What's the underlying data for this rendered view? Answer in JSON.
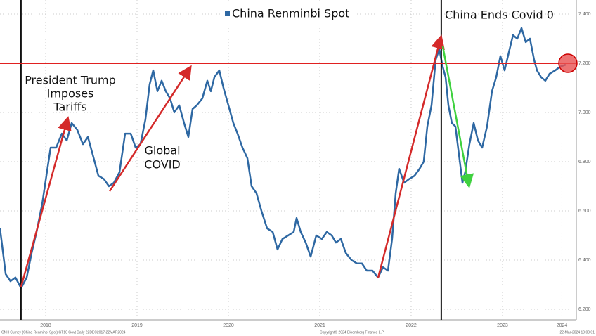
{
  "chart_data": {
    "type": "line",
    "series": [
      {
        "name": "China Renminbi Spot",
        "color": "#2e68a3",
        "x": [
          2018.0,
          2018.062,
          2018.115,
          2018.169,
          2018.231,
          2018.292,
          2018.346,
          2018.4,
          2018.462,
          2018.508,
          2018.554,
          2018.615,
          2018.677,
          2018.731,
          2018.785,
          2018.846,
          2018.908,
          2018.962,
          2019.015,
          2019.077,
          2019.138,
          2019.192,
          2019.246,
          2019.308,
          2019.369,
          2019.431,
          2019.485,
          2019.538,
          2019.592,
          2019.638,
          2019.677,
          2019.723,
          2019.769,
          2019.815,
          2019.862,
          2019.908,
          2019.962,
          2020.015,
          2020.062,
          2020.108,
          2020.154,
          2020.215,
          2020.269,
          2020.308,
          2020.346,
          2020.4,
          2020.446,
          2020.5,
          2020.554,
          2020.6,
          2020.654,
          2020.708,
          2020.754,
          2020.808,
          2020.862,
          2020.923,
          2020.985,
          2021.038,
          2021.092,
          2021.154,
          2021.215,
          2021.246,
          2021.292,
          2021.346,
          2021.4,
          2021.462,
          2021.523,
          2021.577,
          2021.631,
          2021.677,
          2021.731,
          2021.785,
          2021.846,
          2021.908,
          2021.962,
          2022.015,
          2022.077,
          2022.138,
          2022.192,
          2022.246,
          2022.292,
          2022.331,
          2022.369,
          2022.423,
          2022.477,
          2022.538,
          2022.592,
          2022.638,
          2022.677,
          2022.723,
          2022.769,
          2022.808,
          2022.846,
          2022.877,
          2022.908,
          2022.946,
          2022.985,
          2023.023,
          2023.062,
          2023.092,
          2023.138,
          2023.185,
          2023.231,
          2023.277,
          2023.331,
          2023.385,
          2023.431,
          2023.477,
          2023.523,
          2023.569,
          2023.615,
          2023.662,
          2023.708,
          2023.754,
          2023.8,
          2023.846,
          2023.877,
          2023.923,
          2023.969,
          2024.015,
          2024.077,
          2024.131,
          2024.192
        ],
        "values": [
          6.529,
          6.343,
          6.314,
          6.329,
          6.286,
          6.329,
          6.429,
          6.514,
          6.629,
          6.743,
          6.857,
          6.857,
          6.914,
          6.886,
          6.957,
          6.929,
          6.871,
          6.9,
          6.829,
          6.743,
          6.729,
          6.7,
          6.714,
          6.757,
          6.914,
          6.914,
          6.857,
          6.871,
          6.971,
          7.114,
          7.171,
          7.086,
          7.129,
          7.086,
          7.057,
          7.0,
          7.029,
          6.957,
          6.9,
          7.014,
          7.029,
          7.057,
          7.129,
          7.086,
          7.143,
          7.171,
          7.1,
          7.029,
          6.957,
          6.914,
          6.857,
          6.814,
          6.7,
          6.671,
          6.6,
          6.529,
          6.514,
          6.443,
          6.486,
          6.5,
          6.514,
          6.571,
          6.514,
          6.471,
          6.414,
          6.5,
          6.486,
          6.514,
          6.5,
          6.471,
          6.486,
          6.429,
          6.4,
          6.386,
          6.386,
          6.357,
          6.357,
          6.329,
          6.371,
          6.357,
          6.486,
          6.671,
          6.771,
          6.714,
          6.729,
          6.743,
          6.771,
          6.8,
          6.943,
          7.029,
          7.214,
          7.257,
          7.186,
          7.143,
          7.029,
          6.957,
          6.943,
          6.829,
          6.714,
          6.757,
          6.871,
          6.957,
          6.886,
          6.857,
          6.943,
          7.086,
          7.143,
          7.229,
          7.171,
          7.243,
          7.314,
          7.3,
          7.343,
          7.286,
          7.3,
          7.214,
          7.171,
          7.143,
          7.129,
          7.157,
          7.171,
          7.186,
          7.194
        ]
      }
    ],
    "xlim": [
      2018.0,
      2024.308
    ],
    "ylim": [
      6.157,
      7.457
    ],
    "xticks": [
      {
        "value": 2018.5,
        "label": "2018"
      },
      {
        "value": 2019.5,
        "label": "2019"
      },
      {
        "value": 2020.5,
        "label": "2020"
      },
      {
        "value": 2021.5,
        "label": "2021"
      },
      {
        "value": 2022.5,
        "label": "2022"
      },
      {
        "value": 2023.5,
        "label": "2023"
      },
      {
        "value": 2024.15,
        "label": "2024"
      }
    ],
    "yticks": [
      {
        "value": 6.2,
        "label": "6.200"
      },
      {
        "value": 6.4,
        "label": "6.400"
      },
      {
        "value": 6.6,
        "label": "6.600"
      },
      {
        "value": 6.8,
        "label": "6.800"
      },
      {
        "value": 7.0,
        "label": "7.000"
      },
      {
        "value": 7.2,
        "label": "7.200"
      },
      {
        "value": 7.4,
        "label": "7.400"
      }
    ],
    "grid": true,
    "reference_line": {
      "value": 7.2,
      "color": "#e02020"
    },
    "event_lines": [
      2018.23,
      2022.83
    ],
    "annotations": {
      "trump": [
        "President Trump",
        "Imposes",
        "Tariffs"
      ],
      "covid": [
        "Global",
        "COVID"
      ],
      "covid_zero": "China Ends Covid 0"
    },
    "footnotes": [
      "CNH Curncy (China Renminbi Spot) GT10 Govt Daily 22DEC2017-22MAR2024",
      "Copyright© 2024 Bloomberg Finance L.P.",
      "22-Mar-2024 10:00:01"
    ]
  }
}
